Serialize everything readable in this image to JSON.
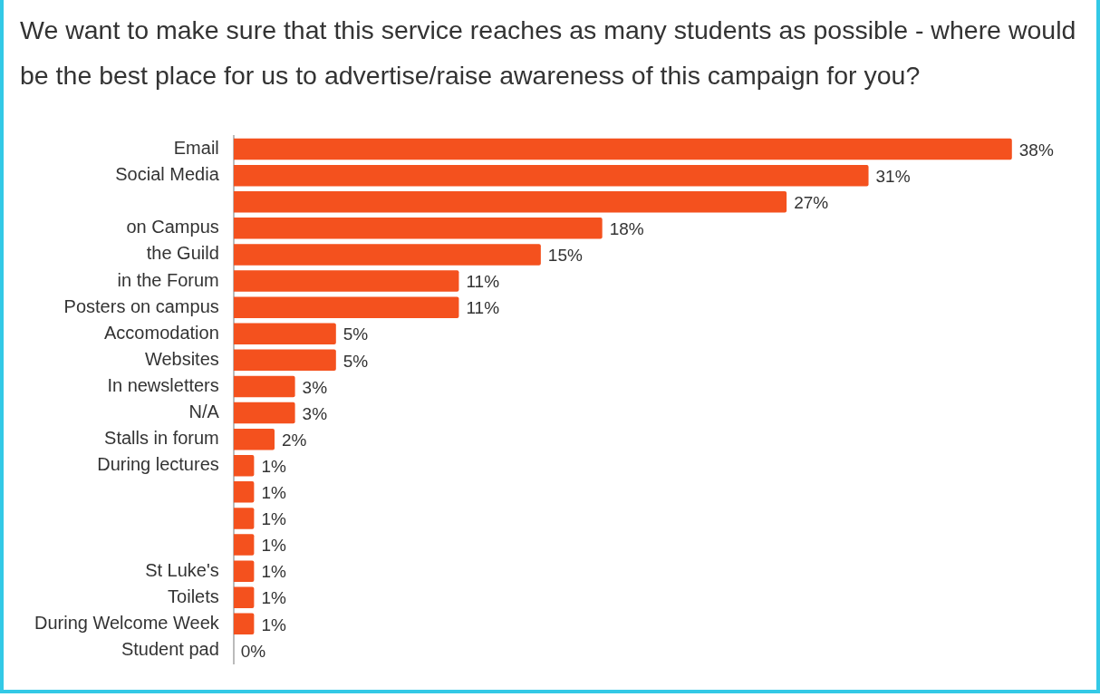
{
  "chart_data": {
    "type": "bar",
    "orientation": "horizontal",
    "title": "We want to make sure that this service reaches as many students as possible - where would be the best place for us to advertise/raise awareness of this campaign for you?",
    "categories": [
      "Email",
      "Social Media",
      null,
      "on Campus",
      "the Guild",
      "in the Forum",
      "Posters on campus",
      "Accomodation",
      "Websites",
      "In newsletters",
      "N/A",
      "Stalls in forum",
      "During lectures",
      null,
      null,
      null,
      "St Luke's",
      "Toilets",
      "During Welcome Week",
      "Student pad"
    ],
    "values": [
      38,
      31,
      27,
      18,
      15,
      11,
      11,
      5,
      5,
      3,
      3,
      2,
      1,
      1,
      1,
      1,
      1,
      1,
      1,
      0
    ],
    "value_labels": [
      "38%",
      "31%",
      "27%",
      "18%",
      "15%",
      "11%",
      "11%",
      "5%",
      "5%",
      "3%",
      "3%",
      "2%",
      "1%",
      "1%",
      "1%",
      "1%",
      "1%",
      "1%",
      "1%",
      "0%"
    ],
    "color": "#f4511e",
    "legend": false
  }
}
